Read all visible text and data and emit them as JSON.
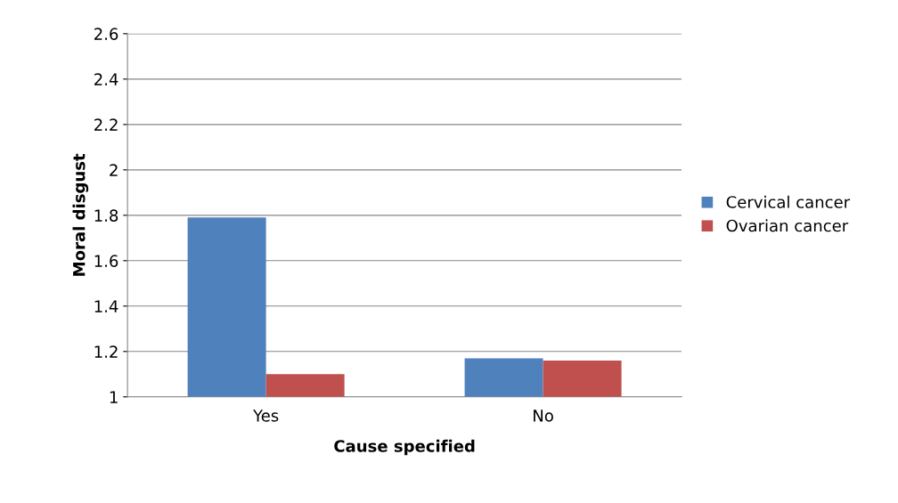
{
  "chart_data": {
    "type": "bar",
    "xlabel": "Cause specified",
    "ylabel": "Moral disgust",
    "categories": [
      "Yes",
      "No"
    ],
    "series": [
      {
        "name": "Cervical cancer",
        "color": "#4f81bd",
        "values": [
          1.79,
          1.17
        ]
      },
      {
        "name": "Ovarian cancer",
        "color": "#c0504d",
        "values": [
          1.1,
          1.16
        ]
      }
    ],
    "ylim": [
      1,
      2.6
    ],
    "yticks": [
      1,
      1.2,
      1.4,
      1.6,
      1.8,
      2,
      2.2,
      2.4,
      2.6
    ],
    "grid": "y",
    "legend": "right"
  }
}
